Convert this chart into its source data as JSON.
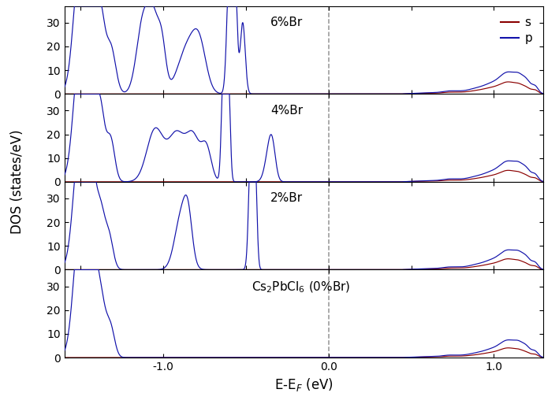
{
  "xlim": [
    -1.6,
    1.3
  ],
  "ylim": [
    0,
    37
  ],
  "ylabel": "DOS (states/eV)",
  "xlabel": "E-E$_F$ (eV)",
  "fermi_x": 0.0,
  "panels": [
    {
      "label": "6%Br",
      "show_legend": true
    },
    {
      "label": "4%Br",
      "show_legend": false
    },
    {
      "label": "2%Br",
      "show_legend": false
    },
    {
      "label": "Cs$_2$PbCl$_6$ (0%Br)",
      "show_legend": false
    }
  ],
  "color_s": "#8B0000",
  "color_p": "#1111AA",
  "legend_s": "s",
  "legend_p": "p",
  "linewidth": 0.85,
  "xticks": [
    -1.0,
    0.0,
    1.0
  ],
  "yticks": [
    0,
    10,
    20,
    30
  ]
}
